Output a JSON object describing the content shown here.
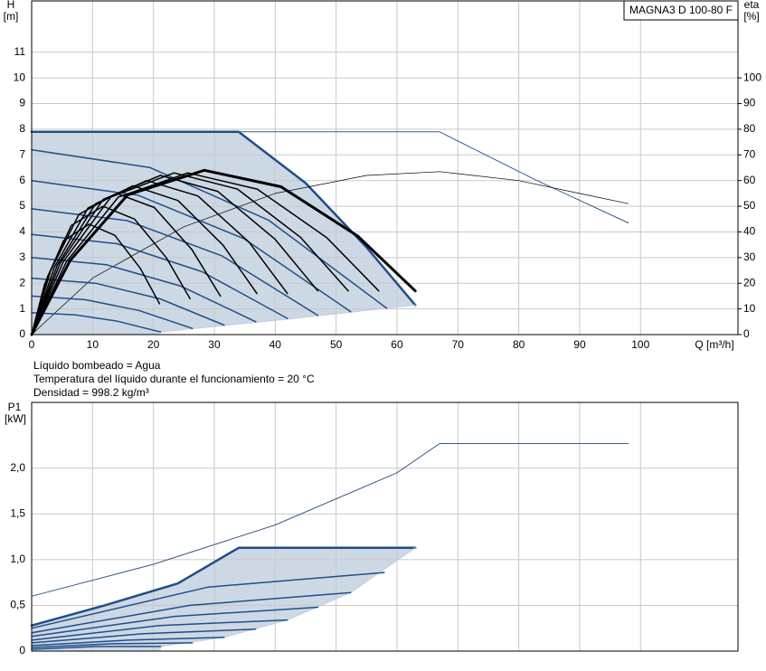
{
  "chart_data": [
    {
      "type": "line",
      "ylabel": "H",
      "ylabel_unit": "[m]",
      "y2label": "eta",
      "y2label_unit": "[%]",
      "xlabel": "Q [m³/h]",
      "legend_text": "MAGNA3 D 100-80 F",
      "xlim": [
        0,
        116
      ],
      "xticks": [
        0,
        10,
        20,
        30,
        40,
        50,
        60,
        70,
        80,
        90,
        100
      ],
      "ylim": [
        0,
        13
      ],
      "yticks": [
        0,
        1,
        2,
        3,
        4,
        5,
        6,
        7,
        8,
        9,
        10,
        11
      ],
      "y2lim": [
        0,
        130
      ],
      "y2ticks": [
        0,
        10,
        20,
        30,
        40,
        50,
        60,
        70,
        80,
        90,
        100
      ],
      "grid": true,
      "shade": "#cdd8e5",
      "series": [
        {
          "color": "#1f4e89",
          "linewidth": 2.5,
          "x": [
            0,
            34,
            45,
            55,
            63
          ],
          "values": [
            7.9,
            7.9,
            5.9,
            3.4,
            1.15
          ]
        },
        {
          "color": "#c3cfdf",
          "linewidth": 1,
          "x": [
            21,
            42,
            63
          ],
          "values": [
            0.1,
            0.6,
            1.15
          ]
        },
        {
          "color": "#3b5a85",
          "linewidth": 1,
          "x": [
            34,
            67,
            83,
            98
          ],
          "values": [
            7.9,
            7.9,
            6.0,
            4.35
          ]
        },
        {
          "color": "#000000",
          "linewidth": 0.7,
          "axis": "y2",
          "x": [
            0,
            10,
            25,
            40,
            55,
            67,
            80,
            90,
            98
          ],
          "values": [
            0,
            22,
            42,
            55,
            62,
            63.5,
            60,
            55,
            51
          ]
        },
        {
          "color": "#1f4e89",
          "linewidth": 1.5,
          "x": [
            0,
            19.4,
            38.9,
            58.3
          ],
          "values": [
            7.2,
            6.51,
            4.46,
            1.03
          ]
        },
        {
          "color": "#1f4e89",
          "linewidth": 1.5,
          "x": [
            0,
            17.5,
            34.9,
            52.4
          ],
          "values": [
            6.0,
            5.43,
            3.73,
            0.89
          ]
        },
        {
          "color": "#1f4e89",
          "linewidth": 1.5,
          "x": [
            0,
            15.7,
            31.3,
            47
          ],
          "values": [
            4.9,
            4.44,
            3.06,
            0.75
          ]
        },
        {
          "color": "#1f4e89",
          "linewidth": 1.5,
          "x": [
            0,
            14,
            28,
            42
          ],
          "values": [
            3.9,
            3.54,
            2.45,
            0.63
          ]
        },
        {
          "color": "#1f4e89",
          "linewidth": 1.5,
          "x": [
            0,
            12.3,
            24.5,
            36.8
          ],
          "values": [
            3.0,
            2.72,
            1.89,
            0.5
          ]
        },
        {
          "color": "#1f4e89",
          "linewidth": 1.5,
          "x": [
            0,
            10.5,
            21.1,
            31.6
          ],
          "values": [
            2.2,
            2.0,
            1.39,
            0.37
          ]
        },
        {
          "color": "#1f4e89",
          "linewidth": 1.5,
          "x": [
            0,
            8.8,
            17.6,
            26.4
          ],
          "values": [
            1.5,
            1.36,
            0.94,
            0.24
          ]
        },
        {
          "color": "#1f4e89",
          "linewidth": 1.5,
          "x": [
            0,
            7.1,
            14.1,
            21.2
          ],
          "values": [
            0.85,
            0.77,
            0.52,
            0.1
          ]
        },
        {
          "color": "#000000",
          "linewidth": 1.5,
          "axis": "y2",
          "x": [
            0,
            2.1,
            5.25,
            9.45,
            13.65,
            17.85,
            21
          ],
          "values": [
            0,
            19.4,
            36.6,
            43,
            38.7,
            25.8,
            12
          ]
        },
        {
          "color": "#000000",
          "linewidth": 1.5,
          "axis": "y2",
          "x": [
            0,
            2.6,
            6.5,
            11.7,
            16.9,
            22.1,
            26
          ],
          "values": [
            0,
            22.5,
            42.5,
            50,
            45,
            30,
            14
          ]
        },
        {
          "color": "#000000",
          "linewidth": 1.5,
          "axis": "y2",
          "x": [
            0,
            3.1,
            7.75,
            13.95,
            20.15,
            26.35,
            31
          ],
          "values": [
            0,
            24.8,
            46.8,
            55,
            49.5,
            33,
            15
          ]
        },
        {
          "color": "#000000",
          "linewidth": 1.5,
          "axis": "y2",
          "x": [
            0,
            3.7,
            9.25,
            16.65,
            24.05,
            31.45,
            37
          ],
          "values": [
            0,
            26.1,
            49.3,
            58,
            52.2,
            34.8,
            16
          ]
        },
        {
          "color": "#000000",
          "linewidth": 1.5,
          "axis": "y2",
          "x": [
            0,
            4.2,
            10.5,
            18.9,
            27.3,
            35.7,
            42
          ],
          "values": [
            0,
            27,
            51,
            60,
            54,
            36,
            16
          ]
        },
        {
          "color": "#000000",
          "linewidth": 1.5,
          "axis": "y2",
          "x": [
            0,
            4.7,
            11.75,
            21.15,
            30.55,
            39.95,
            47
          ],
          "values": [
            0,
            27.9,
            52.7,
            62,
            55.8,
            37.2,
            17
          ]
        },
        {
          "color": "#000000",
          "linewidth": 1.5,
          "axis": "y2",
          "x": [
            0,
            5.2,
            13,
            23.4,
            33.8,
            44.2,
            52
          ],
          "values": [
            0,
            28.4,
            53.6,
            63,
            56.7,
            37.8,
            17
          ]
        },
        {
          "color": "#000000",
          "linewidth": 1.5,
          "axis": "y2",
          "x": [
            0,
            5.7,
            14.25,
            25.65,
            37.05,
            48.45,
            57
          ],
          "values": [
            0,
            28.4,
            53.6,
            63,
            56.7,
            37.8,
            17
          ]
        },
        {
          "color": "#000000",
          "linewidth": 3,
          "axis": "y2",
          "x": [
            0,
            6.3,
            15.75,
            28.35,
            40.95,
            53.55,
            63
          ],
          "values": [
            0,
            28.8,
            54.4,
            64,
            57.6,
            38.4,
            17
          ]
        }
      ]
    },
    {
      "type": "line",
      "notes": [
        "Líquido bombeado = Agua",
        "Temperatura del líquido durante el funcionamiento = 20 °C",
        "Densidad = 998.2 kg/m³"
      ],
      "ylabel": "P1",
      "ylabel_unit": "[kW]",
      "xlim": [
        0,
        116
      ],
      "ylim": [
        0,
        2.72
      ],
      "yticks": [
        0,
        {
          "value": 0.5,
          "label": "0,5"
        },
        {
          "value": 1.0,
          "label": "1,0"
        },
        {
          "value": 1.5,
          "label": "1,5"
        },
        {
          "value": 2.0,
          "label": "2,0"
        }
      ],
      "grid": true,
      "shade": "#cdd8e5",
      "series": [
        {
          "color": "#1f4e89",
          "linewidth": 2.5,
          "x": [
            0,
            12,
            24,
            34,
            63
          ],
          "values": [
            0.28,
            0.5,
            0.74,
            1.13,
            1.13
          ]
        },
        {
          "color": "#c3cfdf",
          "linewidth": 1,
          "x": [
            21.2,
            31.6,
            42,
            52.4,
            63
          ],
          "values": [
            0.05,
            0.15,
            0.34,
            0.64,
            1.13
          ]
        },
        {
          "color": "#3b5a85",
          "linewidth": 1,
          "x": [
            0,
            20,
            40,
            60,
            67,
            98
          ],
          "values": [
            0.6,
            0.95,
            1.38,
            1.95,
            2.27,
            2.27
          ]
        },
        {
          "color": "#1f4e89",
          "linewidth": 1.5,
          "x": [
            0,
            29,
            57.9
          ],
          "values": [
            0.25,
            0.7,
            0.86
          ]
        },
        {
          "color": "#1f4e89",
          "linewidth": 1.5,
          "x": [
            0,
            26,
            52.4
          ],
          "values": [
            0.2,
            0.5,
            0.64
          ]
        },
        {
          "color": "#1f4e89",
          "linewidth": 1.5,
          "x": [
            0,
            23.5,
            47
          ],
          "values": [
            0.16,
            0.38,
            0.48
          ]
        },
        {
          "color": "#1f4e89",
          "linewidth": 1.5,
          "x": [
            0,
            21,
            42
          ],
          "values": [
            0.12,
            0.28,
            0.34
          ]
        },
        {
          "color": "#1f4e89",
          "linewidth": 1.5,
          "x": [
            0,
            18.4,
            36.8
          ],
          "values": [
            0.09,
            0.19,
            0.24
          ]
        },
        {
          "color": "#1f4e89",
          "linewidth": 1.5,
          "x": [
            0,
            15.8,
            31.6
          ],
          "values": [
            0.06,
            0.12,
            0.15
          ]
        },
        {
          "color": "#1f4e89",
          "linewidth": 1.5,
          "x": [
            0,
            13.2,
            26.4
          ],
          "values": [
            0.04,
            0.08,
            0.09
          ]
        },
        {
          "color": "#1f4e89",
          "linewidth": 1.5,
          "x": [
            0,
            10.6,
            21.2
          ],
          "values": [
            0.02,
            0.05,
            0.05
          ]
        }
      ]
    }
  ]
}
